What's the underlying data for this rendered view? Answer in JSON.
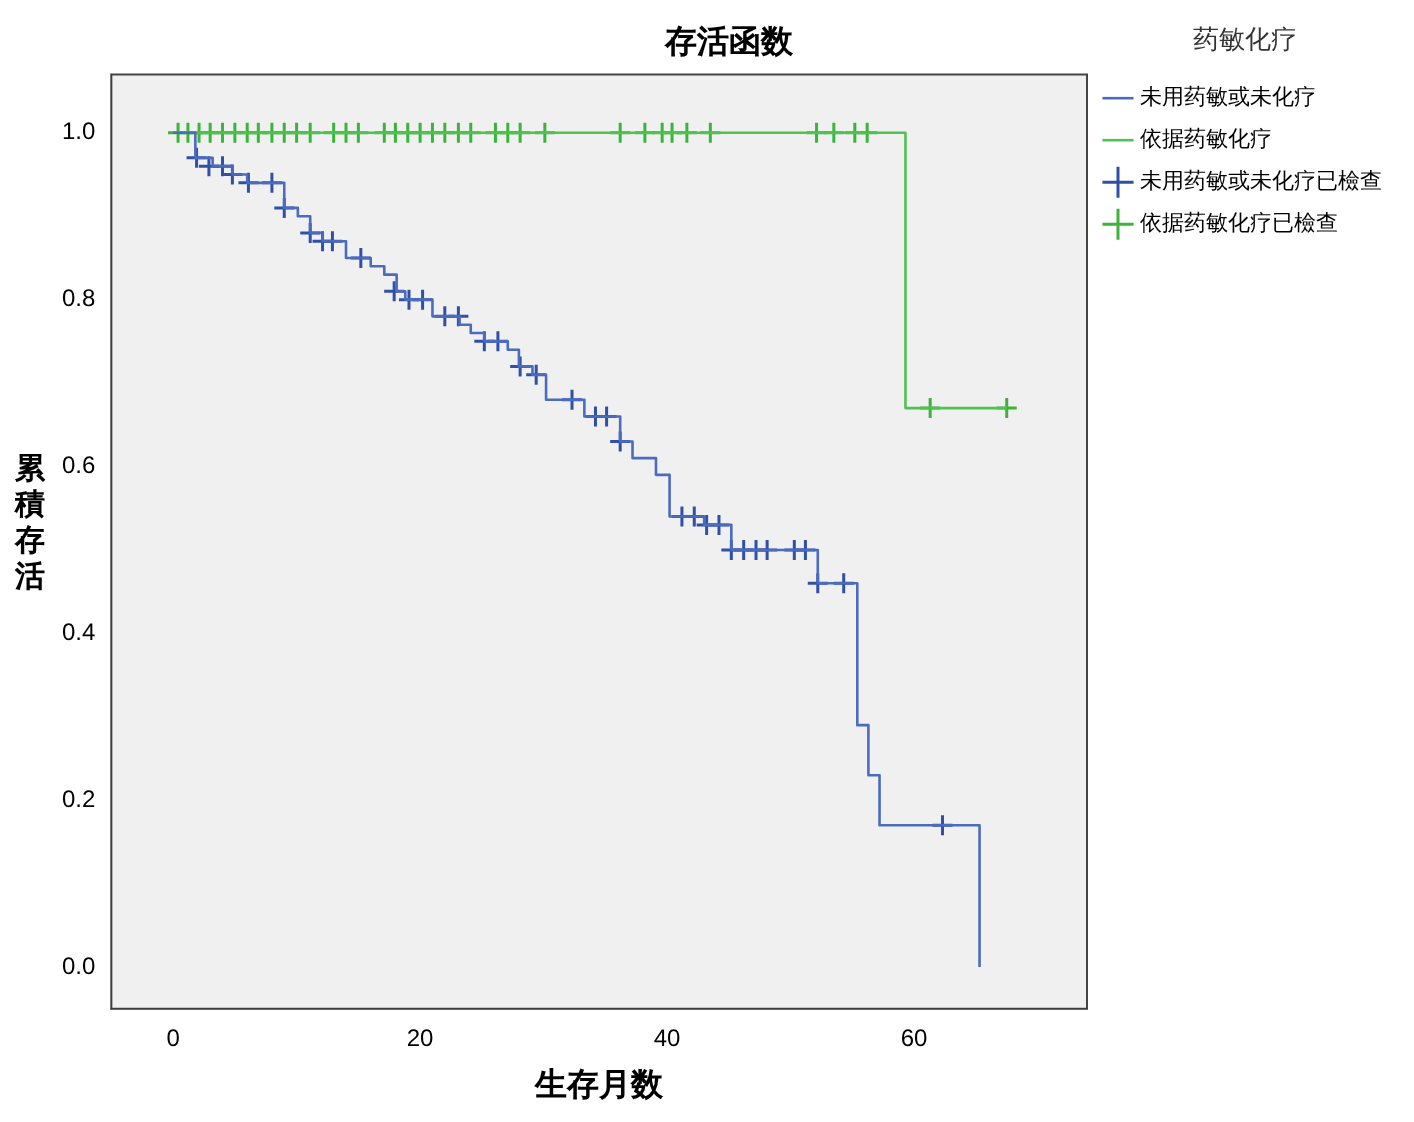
{
  "chart_data": {
    "type": "step",
    "title": "存活函数",
    "xlabel": "生存月数",
    "ylabel": "累積存活",
    "legend_title": "药敏化疗",
    "xlim": [
      -5,
      74
    ],
    "xticks": [
      0,
      20,
      40,
      60
    ],
    "ylim": [
      -0.05,
      1.07
    ],
    "yticks": [
      {
        "value": 0,
        "label": "0.0"
      },
      {
        "value": 0.2,
        "label": "0.2"
      },
      {
        "value": 0.4,
        "label": "0.4"
      },
      {
        "value": 0.6,
        "label": "0.6"
      },
      {
        "value": 0.8,
        "label": "0.8"
      },
      {
        "value": 1,
        "label": "1.0"
      }
    ],
    "grid": false,
    "legend": "right",
    "line_style": "solid",
    "series": [
      {
        "name": "未用药敏或未化疗",
        "marker": "none",
        "color": "#4a6bbf",
        "x": [
          0,
          1.8,
          3.2,
          4.8,
          6.0,
          9.0,
          10.1,
          11.1,
          12.1,
          14.0,
          16.0,
          17.1,
          18.1,
          18.8,
          21.0,
          23.2,
          24.1,
          25.2,
          27.1,
          28.0,
          29.1,
          30.2,
          33.3,
          36.2,
          37.2,
          39.1,
          40.2,
          43.0,
          45.2,
          52.2,
          55.4,
          56.3,
          57.2,
          65.3
        ],
        "values": [
          1,
          0.97,
          0.96,
          0.95,
          0.94,
          0.91,
          0.9,
          0.88,
          0.87,
          0.85,
          0.84,
          0.83,
          0.81,
          0.8,
          0.78,
          0.77,
          0.76,
          0.75,
          0.74,
          0.72,
          0.71,
          0.68,
          0.66,
          0.63,
          0.61,
          0.59,
          0.54,
          0.53,
          0.5,
          0.46,
          0.29,
          0.23,
          0.17,
          0
        ]
      },
      {
        "name": "依据药敏化疗",
        "marker": "none",
        "color": "#4fc24f",
        "x": [
          0,
          59.3,
          67.5
        ],
        "values": [
          1,
          0.67,
          0.67
        ]
      },
      {
        "name": "未用药敏或未化疗已檢查",
        "type": "scatter",
        "marker": "cross",
        "color": "#3050a8",
        "x": [
          1.9,
          2.9,
          4.0,
          4.8,
          6.1,
          8.0,
          9.0,
          11.1,
          12.1,
          12.9,
          15.2,
          17.9,
          19.1,
          20.2,
          22.0,
          23.1,
          25.2,
          26.3,
          28.1,
          29.4,
          32.3,
          34.2,
          35.1,
          36.2,
          41.2,
          42.2,
          43.2,
          44.2,
          45.2,
          46.2,
          47.2,
          48.1,
          50.3,
          51.2,
          52.2,
          54.3,
          62.3
        ],
        "values": [
          0.97,
          0.96,
          0.96,
          0.95,
          0.94,
          0.94,
          0.91,
          0.88,
          0.87,
          0.87,
          0.85,
          0.81,
          0.8,
          0.8,
          0.78,
          0.78,
          0.75,
          0.75,
          0.72,
          0.71,
          0.68,
          0.66,
          0.66,
          0.63,
          0.54,
          0.54,
          0.53,
          0.53,
          0.5,
          0.5,
          0.5,
          0.5,
          0.5,
          0.5,
          0.46,
          0.46,
          0.17
        ]
      },
      {
        "name": "依据药敏化疗已檢查",
        "type": "scatter",
        "marker": "cross",
        "color": "#3cb43c",
        "x": [
          0.4,
          1.2,
          2.1,
          3.0,
          4.0,
          5.0,
          6.0,
          6.9,
          8.0,
          9.0,
          10.0,
          11.1,
          13.0,
          14.0,
          15.0,
          17.1,
          18.0,
          19.0,
          20.0,
          21.0,
          22.0,
          23.1,
          24.1,
          26.1,
          27.1,
          28.1,
          30.1,
          36.2,
          38.2,
          39.6,
          40.4,
          41.6,
          43.5,
          52.1,
          53.5,
          55.2,
          56.2,
          61.3,
          67.5
        ],
        "values": [
          1,
          1,
          1,
          1,
          1,
          1,
          1,
          1,
          1,
          1,
          1,
          1,
          1,
          1,
          1,
          1,
          1,
          1,
          1,
          1,
          1,
          1,
          1,
          1,
          1,
          1,
          1,
          1,
          1,
          1,
          1,
          1,
          1,
          1,
          1,
          1,
          1,
          0.67,
          0.67
        ]
      }
    ]
  }
}
